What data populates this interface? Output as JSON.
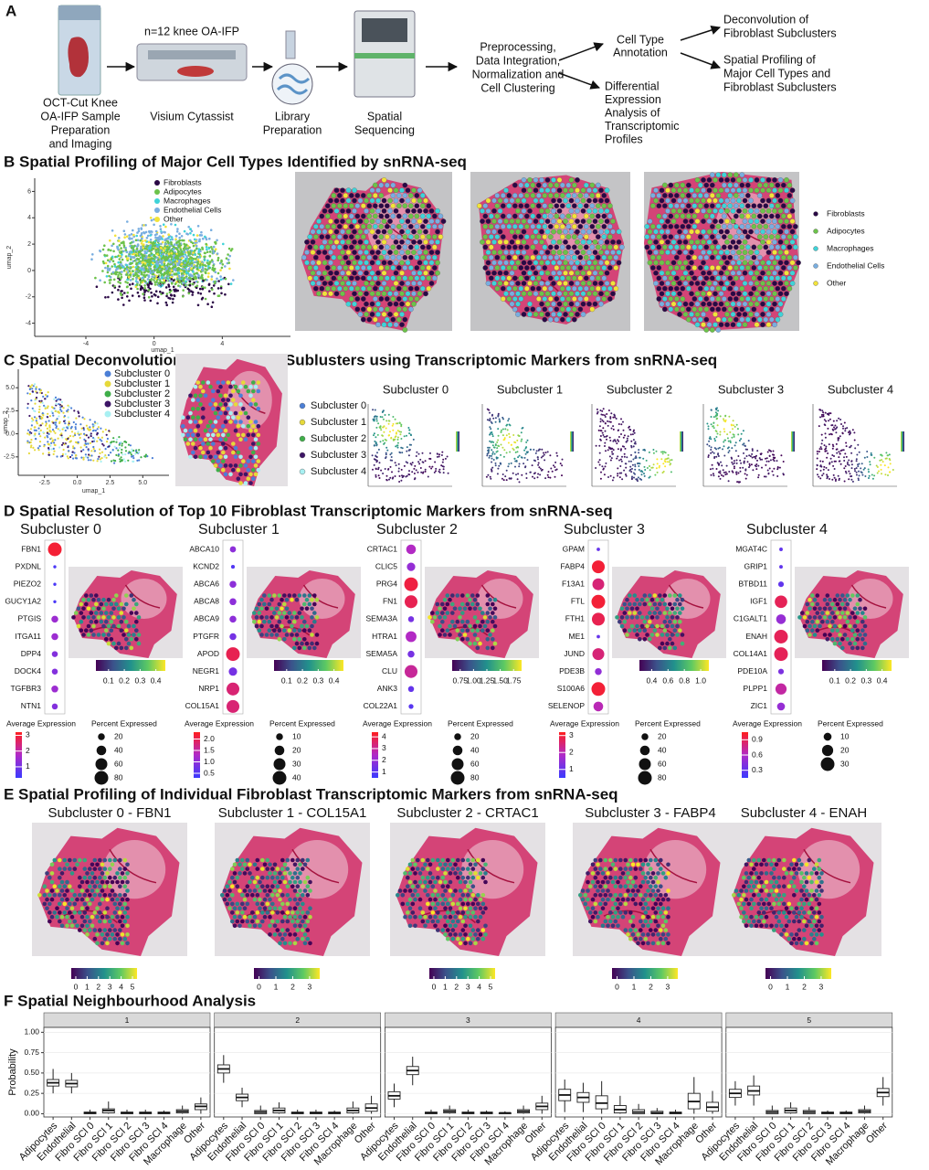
{
  "panel_a": {
    "label": "A",
    "sample": [
      "OCT-Cut Knee",
      "OA-IFP Sample",
      "Preparation",
      "and Imaging"
    ],
    "cohort": "n=12 knee OA-IFP",
    "visium": "Visium Cytassist",
    "library": [
      "Library",
      "Preparation"
    ],
    "sequencing": [
      "Spatial",
      "Sequencing"
    ],
    "preprocessing": [
      "Preprocessing,",
      "Data Integration,",
      "Normalization and",
      "Cell Clustering"
    ],
    "annotation": [
      "Cell Type",
      "Annotation"
    ],
    "differential": [
      "Differential",
      "Expression",
      "Analysis of",
      "Transcriptomic",
      "Profiles"
    ],
    "deconvolution": [
      "Deconvolution of",
      "Fibroblast Subclusters"
    ],
    "profiling": [
      "Spatial Profiling of",
      "Major Cell Types and",
      "Fibroblast Subclusters"
    ]
  },
  "panel_b": {
    "title": "B Spatial Profiling of Major Cell Types Identified by snRNA-seq",
    "umap": {
      "xlabel": "umap_1",
      "ylabel": "umap_2",
      "xlim": [
        -7,
        8
      ],
      "xticks": [
        -4,
        0,
        4
      ],
      "ylim": [
        -5,
        7
      ],
      "yticks": [
        -4,
        -2,
        0,
        2,
        4,
        6
      ]
    },
    "legend": [
      {
        "name": "Fibroblasts",
        "color": "#2a0845"
      },
      {
        "name": "Adipocytes",
        "color": "#6cc24a"
      },
      {
        "name": "Macrophages",
        "color": "#3fd3d8"
      },
      {
        "name": "Endothelial Cells",
        "color": "#79aee0"
      },
      {
        "name": "Other",
        "color": "#f2e33a"
      }
    ]
  },
  "panel_c": {
    "title": "C Spatial Deconvolution of Fibroblast Sublusters using Transcriptomic Markers from snRNA-seq",
    "umap": {
      "xlabel": "umap_1",
      "ylabel": "umap_2",
      "xlim": [
        -4.5,
        7
      ],
      "xticks": [
        -2.5,
        {
          "value": 0,
          "label": "0.0"
        },
        2.5,
        {
          "value": 5,
          "label": "5.0"
        }
      ],
      "ylim": [
        -4.5,
        7
      ],
      "yticks": [
        -2.5,
        {
          "value": 0,
          "label": "0.0"
        },
        2.5,
        {
          "value": 5,
          "label": "5.0"
        }
      ]
    },
    "subclusters": [
      {
        "name": "Subcluster 0",
        "color": "#4b7fd6"
      },
      {
        "name": "Subcluster 1",
        "color": "#e6d93a"
      },
      {
        "name": "Subcluster 2",
        "color": "#3fae49"
      },
      {
        "name": "Subcluster 3",
        "color": "#3d1566"
      },
      {
        "name": "Subcluster 4",
        "color": "#a8f0f2"
      }
    ]
  },
  "panel_d": {
    "title": "D Spatial Resolution of Top 10 Fibroblast Transcriptomic Markers from snRNA-seq",
    "columns": [
      {
        "title": "Subcluster 0",
        "genes": [
          "FBN1",
          "PXDNL",
          "PIEZO2",
          "GUCY1A2",
          "PTGIS",
          "ITGA11",
          "DPP4",
          "DOCK4",
          "TGFBR3",
          "NTN1"
        ],
        "percent": [
          80,
          4,
          4,
          4,
          20,
          20,
          15,
          15,
          20,
          15
        ],
        "expression": [
          3,
          0.5,
          0.5,
          0.5,
          1.5,
          1.5,
          1.2,
          1.2,
          1.5,
          1.2
        ],
        "colorbar": [
          0.1,
          0.2,
          0.3,
          0.4
        ],
        "colorbar_lim": [
          0.02,
          0.46
        ],
        "avg_label": "Average Expression",
        "avg_ticks": [
          3,
          2,
          1
        ],
        "avg_lim": [
          0.3,
          3.2
        ],
        "pct_label": "Percent Expressed",
        "pct_ticks": [
          20,
          40,
          60,
          80
        ]
      },
      {
        "title": "Subcluster 1",
        "genes": [
          "ABCA10",
          "KCND2",
          "ABCA6",
          "ABCA8",
          "ABCA9",
          "PTGFR",
          "APOD",
          "NEGR1",
          "NRP1",
          "COL15A1"
        ],
        "percent": [
          8,
          3,
          10,
          10,
          10,
          10,
          40,
          15,
          35,
          35
        ],
        "expression": [
          1,
          0.5,
          1,
          1,
          1,
          0.8,
          2,
          0.8,
          1.8,
          1.8
        ],
        "colorbar": [
          0.1,
          0.2,
          0.3,
          0.4
        ],
        "colorbar_lim": [
          0.02,
          0.46
        ],
        "avg_label": "Average Expression",
        "avg_ticks": [
          {
            "value": 2,
            "label": "2.0"
          },
          1.5,
          {
            "value": 1,
            "label": "1.0"
          },
          0.5
        ],
        "avg_lim": [
          0.3,
          2.3
        ],
        "pct_label": "Percent Expressed",
        "pct_ticks": [
          10,
          20,
          30,
          40
        ]
      },
      {
        "title": "Subcluster 2",
        "genes": [
          "CRTAC1",
          "CLIC5",
          "PRG4",
          "FN1",
          "SEMA3A",
          "HTRA1",
          "SEMA5A",
          "CLU",
          "ANK3",
          "COL22A1"
        ],
        "percent": [
          40,
          30,
          80,
          70,
          15,
          50,
          20,
          70,
          15,
          10
        ],
        "expression": [
          2.5,
          2,
          4,
          3.8,
          1.5,
          2.5,
          1.5,
          3,
          1.2,
          1
        ],
        "colorbar": [
          0.75,
          {
            "value": 1,
            "label": "1.00"
          },
          1.25,
          {
            "value": 1.5,
            "label": "1.50"
          },
          1.75
        ],
        "colorbar_lim": [
          0.6,
          1.9
        ],
        "avg_label": "Average Expression",
        "avg_ticks": [
          4,
          3,
          2,
          1
        ],
        "avg_lim": [
          0.5,
          4.4
        ],
        "pct_label": "Percent Expressed",
        "pct_ticks": [
          20,
          40,
          60,
          80
        ]
      },
      {
        "title": "Subcluster 3",
        "genes": [
          "GPAM",
          "FABP4",
          "F13A1",
          "FTL",
          "FTH1",
          "ME1",
          "JUND",
          "PDE3B",
          "S100A6",
          "SELENOP"
        ],
        "percent": [
          5,
          70,
          60,
          80,
          70,
          5,
          60,
          20,
          80,
          40
        ],
        "expression": [
          1,
          3,
          2.5,
          3,
          2.8,
          1,
          2.5,
          1.5,
          3,
          2
        ],
        "colorbar": [
          0.4,
          0.6,
          0.8,
          {
            "value": 1,
            "label": "1.0"
          }
        ],
        "colorbar_lim": [
          0.25,
          1.1
        ],
        "avg_label": "Average Expression",
        "avg_ticks": [
          3,
          2,
          1
        ],
        "avg_lim": [
          0.5,
          3.2
        ],
        "pct_label": "Percent Expressed",
        "pct_ticks": [
          20,
          40,
          60,
          80
        ]
      },
      {
        "title": "Subcluster 4",
        "genes": [
          "MGAT4C",
          "GRIP1",
          "BTBD11",
          "IGF1",
          "C1GALT1",
          "ENAH",
          "COL14A1",
          "PDE10A",
          "PLPP1",
          "ZIC1"
        ],
        "percent": [
          2,
          2,
          5,
          25,
          15,
          30,
          30,
          5,
          20,
          10
        ],
        "expression": [
          0.3,
          0.3,
          0.3,
          0.9,
          0.5,
          0.9,
          0.9,
          0.4,
          0.7,
          0.5
        ],
        "colorbar": [
          0.1,
          0.2,
          0.3,
          0.4
        ],
        "colorbar_lim": [
          0.02,
          0.46
        ],
        "avg_label": "Average Expression",
        "avg_ticks": [
          0.9,
          0.6,
          0.3
        ],
        "avg_lim": [
          0.15,
          1.05
        ],
        "pct_label": "Percent Expressed",
        "pct_ticks": [
          10,
          20,
          30
        ]
      }
    ]
  },
  "panel_e": {
    "title": "E Spatial Profiling of Individual Fibroblast Transcriptomic Markers from snRNA-seq",
    "maps": [
      {
        "title": "Subcluster 0 - FBN1",
        "ticks": [
          0,
          1,
          2,
          3,
          4,
          5
        ],
        "lim": [
          -0.4,
          5.4
        ]
      },
      {
        "title": "Subcluster 1 - COL15A1",
        "ticks": [
          0,
          1,
          2,
          3
        ],
        "lim": [
          -0.3,
          3.6
        ]
      },
      {
        "title": "Subcluster 2 - CRTAC1",
        "ticks": [
          0,
          1,
          2,
          3,
          4,
          5
        ],
        "lim": [
          -0.4,
          5.4
        ]
      },
      {
        "title": "Subcluster 3 - FABP4",
        "ticks": [
          0,
          1,
          2,
          3
        ],
        "lim": [
          -0.3,
          3.6
        ]
      },
      {
        "title": "Subcluster 4 - ENAH",
        "ticks": [
          0,
          1,
          2,
          3
        ],
        "lim": [
          -0.3,
          3.6
        ]
      }
    ]
  },
  "chart_data": {
    "type": "box",
    "title": "F Spatial Neighbourhood Analysis",
    "ylabel": "Probability",
    "categories": [
      "Adipocytes",
      "Endothelial",
      "Fibro SCl 0",
      "Fibro SCl 1",
      "Fibro SCl 2",
      "Fibro SCl 3",
      "Fibro SCl 4",
      "Macrophage",
      "Other"
    ],
    "ylim": [
      -0.04,
      1.06
    ],
    "yticks": [
      {
        "value": 0,
        "label": "0.00"
      },
      0.25,
      {
        "value": 0.5,
        "label": "0.50"
      },
      0.75,
      {
        "value": 1,
        "label": "1.00"
      }
    ],
    "grid": true,
    "facets": [
      {
        "label": "1",
        "boxes": [
          {
            "whislo": 0.25,
            "q1": 0.34,
            "median": 0.38,
            "q3": 0.42,
            "whishi": 0.55
          },
          {
            "whislo": 0.25,
            "q1": 0.33,
            "median": 0.37,
            "q3": 0.41,
            "whishi": 0.5
          },
          {
            "whislo": 0,
            "q1": 0,
            "median": 0.01,
            "q3": 0.02,
            "whishi": 0.05
          },
          {
            "whislo": 0,
            "q1": 0.01,
            "median": 0.04,
            "q3": 0.06,
            "whishi": 0.15
          },
          {
            "whislo": 0,
            "q1": 0,
            "median": 0.01,
            "q3": 0.02,
            "whishi": 0.05
          },
          {
            "whislo": 0,
            "q1": 0,
            "median": 0.01,
            "q3": 0.02,
            "whishi": 0.05
          },
          {
            "whislo": 0,
            "q1": 0,
            "median": 0.01,
            "q3": 0.02,
            "whishi": 0.04
          },
          {
            "whislo": 0,
            "q1": 0.01,
            "median": 0.03,
            "q3": 0.05,
            "whishi": 0.1
          },
          {
            "whislo": 0,
            "q1": 0.05,
            "median": 0.09,
            "q3": 0.12,
            "whishi": 0.2
          }
        ]
      },
      {
        "label": "2",
        "boxes": [
          {
            "whislo": 0.38,
            "q1": 0.5,
            "median": 0.55,
            "q3": 0.6,
            "whishi": 0.72
          },
          {
            "whislo": 0.08,
            "q1": 0.16,
            "median": 0.2,
            "q3": 0.24,
            "whishi": 0.32
          },
          {
            "whislo": 0,
            "q1": 0,
            "median": 0.02,
            "q3": 0.04,
            "whishi": 0.1
          },
          {
            "whislo": 0,
            "q1": 0.01,
            "median": 0.04,
            "q3": 0.07,
            "whishi": 0.14
          },
          {
            "whislo": 0,
            "q1": 0,
            "median": 0.01,
            "q3": 0.02,
            "whishi": 0.05
          },
          {
            "whislo": 0,
            "q1": 0,
            "median": 0.01,
            "q3": 0.02,
            "whishi": 0.05
          },
          {
            "whislo": 0,
            "q1": 0,
            "median": 0.01,
            "q3": 0.02,
            "whishi": 0.04
          },
          {
            "whislo": 0,
            "q1": 0.01,
            "median": 0.04,
            "q3": 0.07,
            "whishi": 0.15
          },
          {
            "whislo": 0,
            "q1": 0.03,
            "median": 0.07,
            "q3": 0.12,
            "whishi": 0.22
          }
        ]
      },
      {
        "label": "3",
        "boxes": [
          {
            "whislo": 0.08,
            "q1": 0.18,
            "median": 0.22,
            "q3": 0.27,
            "whishi": 0.37
          },
          {
            "whislo": 0.35,
            "q1": 0.48,
            "median": 0.53,
            "q3": 0.58,
            "whishi": 0.7
          },
          {
            "whislo": 0,
            "q1": 0,
            "median": 0.01,
            "q3": 0.02,
            "whishi": 0.05
          },
          {
            "whislo": 0,
            "q1": 0.01,
            "median": 0.03,
            "q3": 0.05,
            "whishi": 0.1
          },
          {
            "whislo": 0,
            "q1": 0,
            "median": 0.01,
            "q3": 0.02,
            "whishi": 0.05
          },
          {
            "whislo": 0,
            "q1": 0,
            "median": 0.01,
            "q3": 0.02,
            "whishi": 0.04
          },
          {
            "whislo": 0,
            "q1": 0,
            "median": 0.01,
            "q3": 0.01,
            "whishi": 0.03
          },
          {
            "whislo": 0,
            "q1": 0.01,
            "median": 0.03,
            "q3": 0.05,
            "whishi": 0.1
          },
          {
            "whislo": 0,
            "q1": 0.05,
            "median": 0.09,
            "q3": 0.13,
            "whishi": 0.22
          }
        ]
      },
      {
        "label": "4",
        "boxes": [
          {
            "whislo": 0.02,
            "q1": 0.16,
            "median": 0.23,
            "q3": 0.3,
            "whishi": 0.42
          },
          {
            "whislo": 0.02,
            "q1": 0.14,
            "median": 0.2,
            "q3": 0.26,
            "whishi": 0.38
          },
          {
            "whislo": 0,
            "q1": 0.06,
            "median": 0.13,
            "q3": 0.22,
            "whishi": 0.4
          },
          {
            "whislo": 0,
            "q1": 0.01,
            "median": 0.05,
            "q3": 0.1,
            "whishi": 0.22
          },
          {
            "whislo": 0,
            "q1": 0,
            "median": 0.02,
            "q3": 0.05,
            "whishi": 0.12
          },
          {
            "whislo": 0,
            "q1": 0,
            "median": 0.01,
            "q3": 0.03,
            "whishi": 0.07
          },
          {
            "whislo": 0,
            "q1": 0,
            "median": 0.01,
            "q3": 0.02,
            "whishi": 0.05
          },
          {
            "whislo": 0,
            "q1": 0.06,
            "median": 0.15,
            "q3": 0.25,
            "whishi": 0.45
          },
          {
            "whislo": 0,
            "q1": 0.03,
            "median": 0.08,
            "q3": 0.14,
            "whishi": 0.28
          }
        ]
      },
      {
        "label": "5",
        "boxes": [
          {
            "whislo": 0.1,
            "q1": 0.2,
            "median": 0.25,
            "q3": 0.3,
            "whishi": 0.4
          },
          {
            "whislo": 0.1,
            "q1": 0.23,
            "median": 0.28,
            "q3": 0.34,
            "whishi": 0.47
          },
          {
            "whislo": 0,
            "q1": 0,
            "median": 0.02,
            "q3": 0.04,
            "whishi": 0.1
          },
          {
            "whislo": 0,
            "q1": 0.01,
            "median": 0.04,
            "q3": 0.07,
            "whishi": 0.14
          },
          {
            "whislo": 0,
            "q1": 0,
            "median": 0.02,
            "q3": 0.04,
            "whishi": 0.08
          },
          {
            "whislo": 0,
            "q1": 0,
            "median": 0.01,
            "q3": 0.02,
            "whishi": 0.04
          },
          {
            "whislo": 0,
            "q1": 0,
            "median": 0.01,
            "q3": 0.02,
            "whishi": 0.04
          },
          {
            "whislo": 0,
            "q1": 0.01,
            "median": 0.03,
            "q3": 0.05,
            "whishi": 0.1
          },
          {
            "whislo": 0.1,
            "q1": 0.21,
            "median": 0.26,
            "q3": 0.31,
            "whishi": 0.45
          }
        ]
      }
    ]
  }
}
